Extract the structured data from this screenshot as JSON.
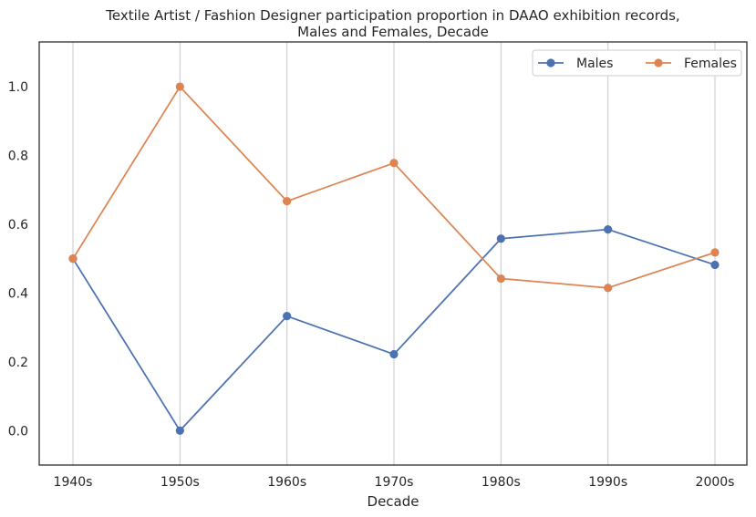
{
  "chart_data": {
    "type": "line",
    "title_line1": "Textile Artist / Fashion Designer participation proportion in DAAO exhibition records,",
    "title_line2": "Males and Females, Decade",
    "xlabel": "Decade",
    "ylabel": "",
    "categories": [
      "1940s",
      "1950s",
      "1960s",
      "1970s",
      "1980s",
      "1990s",
      "2000s"
    ],
    "ylim": [
      -0.1,
      1.13
    ],
    "yticks": [
      "0.0",
      "0.2",
      "0.4",
      "0.6",
      "0.8",
      "1.0"
    ],
    "grid": "vertical",
    "legend_position": "upper-right",
    "series": [
      {
        "name": "Males",
        "color": "#4c72b0",
        "values": [
          0.5,
          0.0,
          0.333,
          0.222,
          0.558,
          0.585,
          0.482
        ]
      },
      {
        "name": "Females",
        "color": "#dd8452",
        "values": [
          0.5,
          1.0,
          0.667,
          0.778,
          0.442,
          0.415,
          0.518
        ]
      }
    ]
  }
}
